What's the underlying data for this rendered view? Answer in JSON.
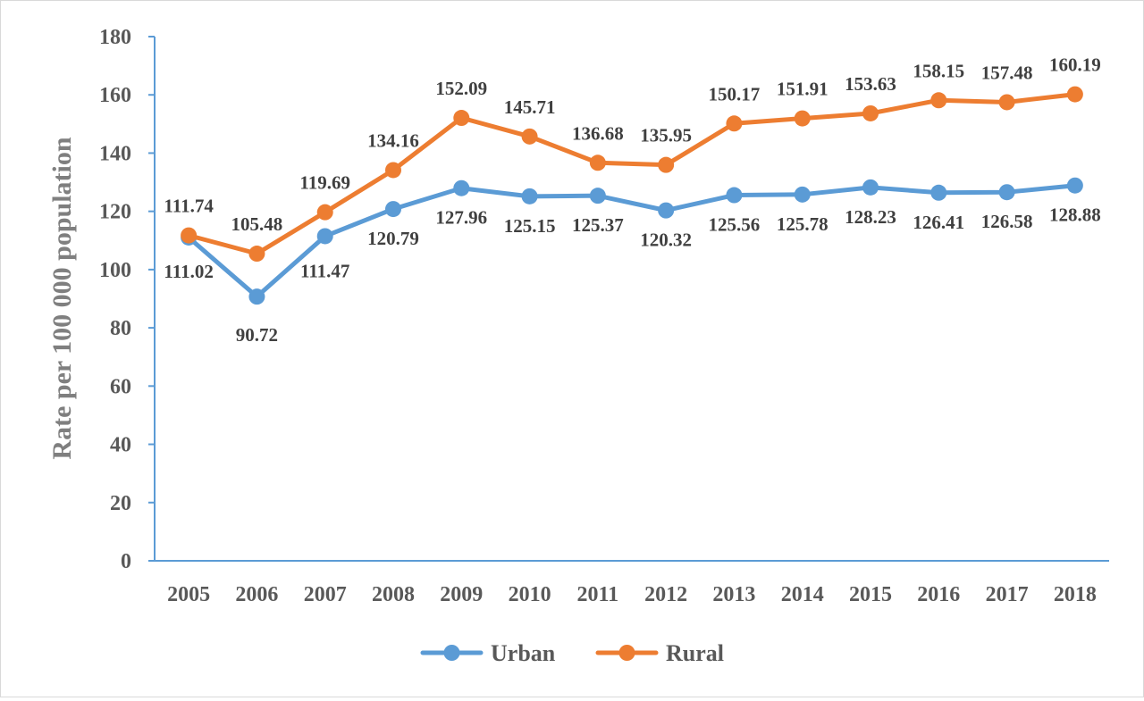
{
  "chart_data": {
    "type": "line",
    "ylabel": "Rate per 100 000 population",
    "xlabel": "",
    "ylim": [
      0,
      180
    ],
    "yticks": [
      0,
      20,
      40,
      60,
      80,
      100,
      120,
      140,
      160,
      180
    ],
    "categories": [
      "2005",
      "2006",
      "2007",
      "2008",
      "2009",
      "2010",
      "2011",
      "2012",
      "2013",
      "2014",
      "2015",
      "2016",
      "2017",
      "2018"
    ],
    "series": [
      {
        "name": "Urban",
        "color": "#5b9bd5",
        "values": [
          111.02,
          90.72,
          111.47,
          120.79,
          127.96,
          125.15,
          125.37,
          120.32,
          125.56,
          125.78,
          128.23,
          126.41,
          126.58,
          128.88
        ],
        "labels": [
          "111.02",
          "90.72",
          "111.47",
          "120.79",
          "127.96",
          "125.15",
          "125.37",
          "120.32",
          "125.56",
          "125.78",
          "128.23",
          "126.41",
          "126.58",
          "128.88"
        ]
      },
      {
        "name": "Rural",
        "color": "#ed7d31",
        "values": [
          111.74,
          105.48,
          119.69,
          134.16,
          152.09,
          145.71,
          136.68,
          135.95,
          150.17,
          151.91,
          153.63,
          158.15,
          157.48,
          160.19
        ],
        "labels": [
          "111.74",
          "105.48",
          "119.69",
          "134.16",
          "152.09",
          "145.71",
          "136.68",
          "135.95",
          "150.17",
          "151.91",
          "153.63",
          "158.15",
          "157.48",
          "160.19"
        ]
      }
    ],
    "grid": false,
    "legend": "bottom-center"
  }
}
